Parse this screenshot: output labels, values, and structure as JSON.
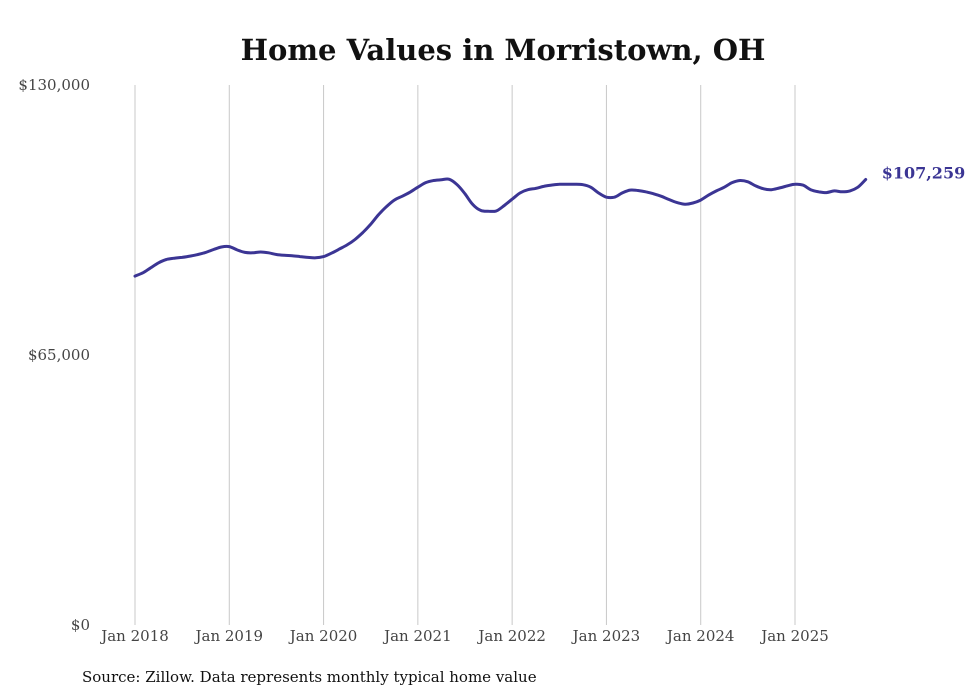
{
  "chart_data": {
    "type": "line",
    "title": "Home Values in Morristown, OH",
    "ylabel": "",
    "xlabel": "",
    "ylim": [
      0,
      130000
    ],
    "yticks": [
      {
        "value": 0,
        "label": "$0"
      },
      {
        "value": 65000,
        "label": "$65,000"
      },
      {
        "value": 130000,
        "label": "$130,000"
      }
    ],
    "xticks": [
      {
        "value": "2018-01",
        "label": "Jan 2018"
      },
      {
        "value": "2019-01",
        "label": "Jan 2019"
      },
      {
        "value": "2020-01",
        "label": "Jan 2020"
      },
      {
        "value": "2021-01",
        "label": "Jan 2021"
      },
      {
        "value": "2022-01",
        "label": "Jan 2022"
      },
      {
        "value": "2023-01",
        "label": "Jan 2023"
      },
      {
        "value": "2024-01",
        "label": "Jan 2024"
      },
      {
        "value": "2025-01",
        "label": "Jan 2025"
      }
    ],
    "grid": "vertical",
    "line_color": "#3b3594",
    "end_label": "$107,259",
    "series": [
      {
        "x": [
          "2018-01",
          "2018-02",
          "2018-03",
          "2018-04",
          "2018-05",
          "2018-06",
          "2018-07",
          "2018-08",
          "2018-09",
          "2018-10",
          "2018-11",
          "2018-12",
          "2019-01",
          "2019-02",
          "2019-03",
          "2019-04",
          "2019-05",
          "2019-06",
          "2019-07",
          "2019-08",
          "2019-09",
          "2019-10",
          "2019-11",
          "2019-12",
          "2020-01",
          "2020-02",
          "2020-03",
          "2020-04",
          "2020-05",
          "2020-06",
          "2020-07",
          "2020-08",
          "2020-09",
          "2020-10",
          "2020-11",
          "2020-12",
          "2021-01",
          "2021-02",
          "2021-03",
          "2021-04",
          "2021-05",
          "2021-06",
          "2021-07",
          "2021-08",
          "2021-09",
          "2021-10",
          "2021-11",
          "2021-12",
          "2022-01",
          "2022-02",
          "2022-03",
          "2022-04",
          "2022-05",
          "2022-06",
          "2022-07",
          "2022-08",
          "2022-09",
          "2022-10",
          "2022-11",
          "2022-12",
          "2023-01",
          "2023-02",
          "2023-03",
          "2023-04",
          "2023-05",
          "2023-06",
          "2023-07",
          "2023-08",
          "2023-09",
          "2023-10",
          "2023-11",
          "2023-12",
          "2024-01",
          "2024-02",
          "2024-03",
          "2024-04",
          "2024-05",
          "2024-06",
          "2024-07",
          "2024-08",
          "2024-09",
          "2024-10",
          "2024-11",
          "2024-12",
          "2025-01",
          "2025-02",
          "2025-03",
          "2025-04",
          "2025-05",
          "2025-06",
          "2025-07",
          "2025-08",
          "2025-09",
          "2025-10"
        ],
        "values": [
          84000,
          84800,
          86000,
          87200,
          88000,
          88300,
          88500,
          88800,
          89200,
          89700,
          90400,
          91000,
          91100,
          90300,
          89700,
          89600,
          89800,
          89600,
          89200,
          89000,
          88900,
          88700,
          88500,
          88400,
          88700,
          89500,
          90500,
          91500,
          92800,
          94500,
          96500,
          98800,
          100700,
          102300,
          103200,
          104200,
          105400,
          106500,
          107000,
          107200,
          107300,
          106000,
          103800,
          101200,
          99800,
          99600,
          99700,
          101000,
          102500,
          104000,
          104800,
          105100,
          105600,
          105900,
          106100,
          106100,
          106100,
          106000,
          105400,
          104000,
          103000,
          103000,
          104000,
          104700,
          104600,
          104300,
          103800,
          103200,
          102400,
          101700,
          101300,
          101600,
          102300,
          103500,
          104500,
          105400,
          106500,
          107000,
          106700,
          105700,
          105000,
          104800,
          105200,
          105700,
          106100,
          105900,
          104800,
          104300,
          104100,
          104500,
          104300,
          104500,
          105400,
          107259
        ]
      }
    ]
  },
  "source": "Source: Zillow. Data represents monthly typical home value"
}
